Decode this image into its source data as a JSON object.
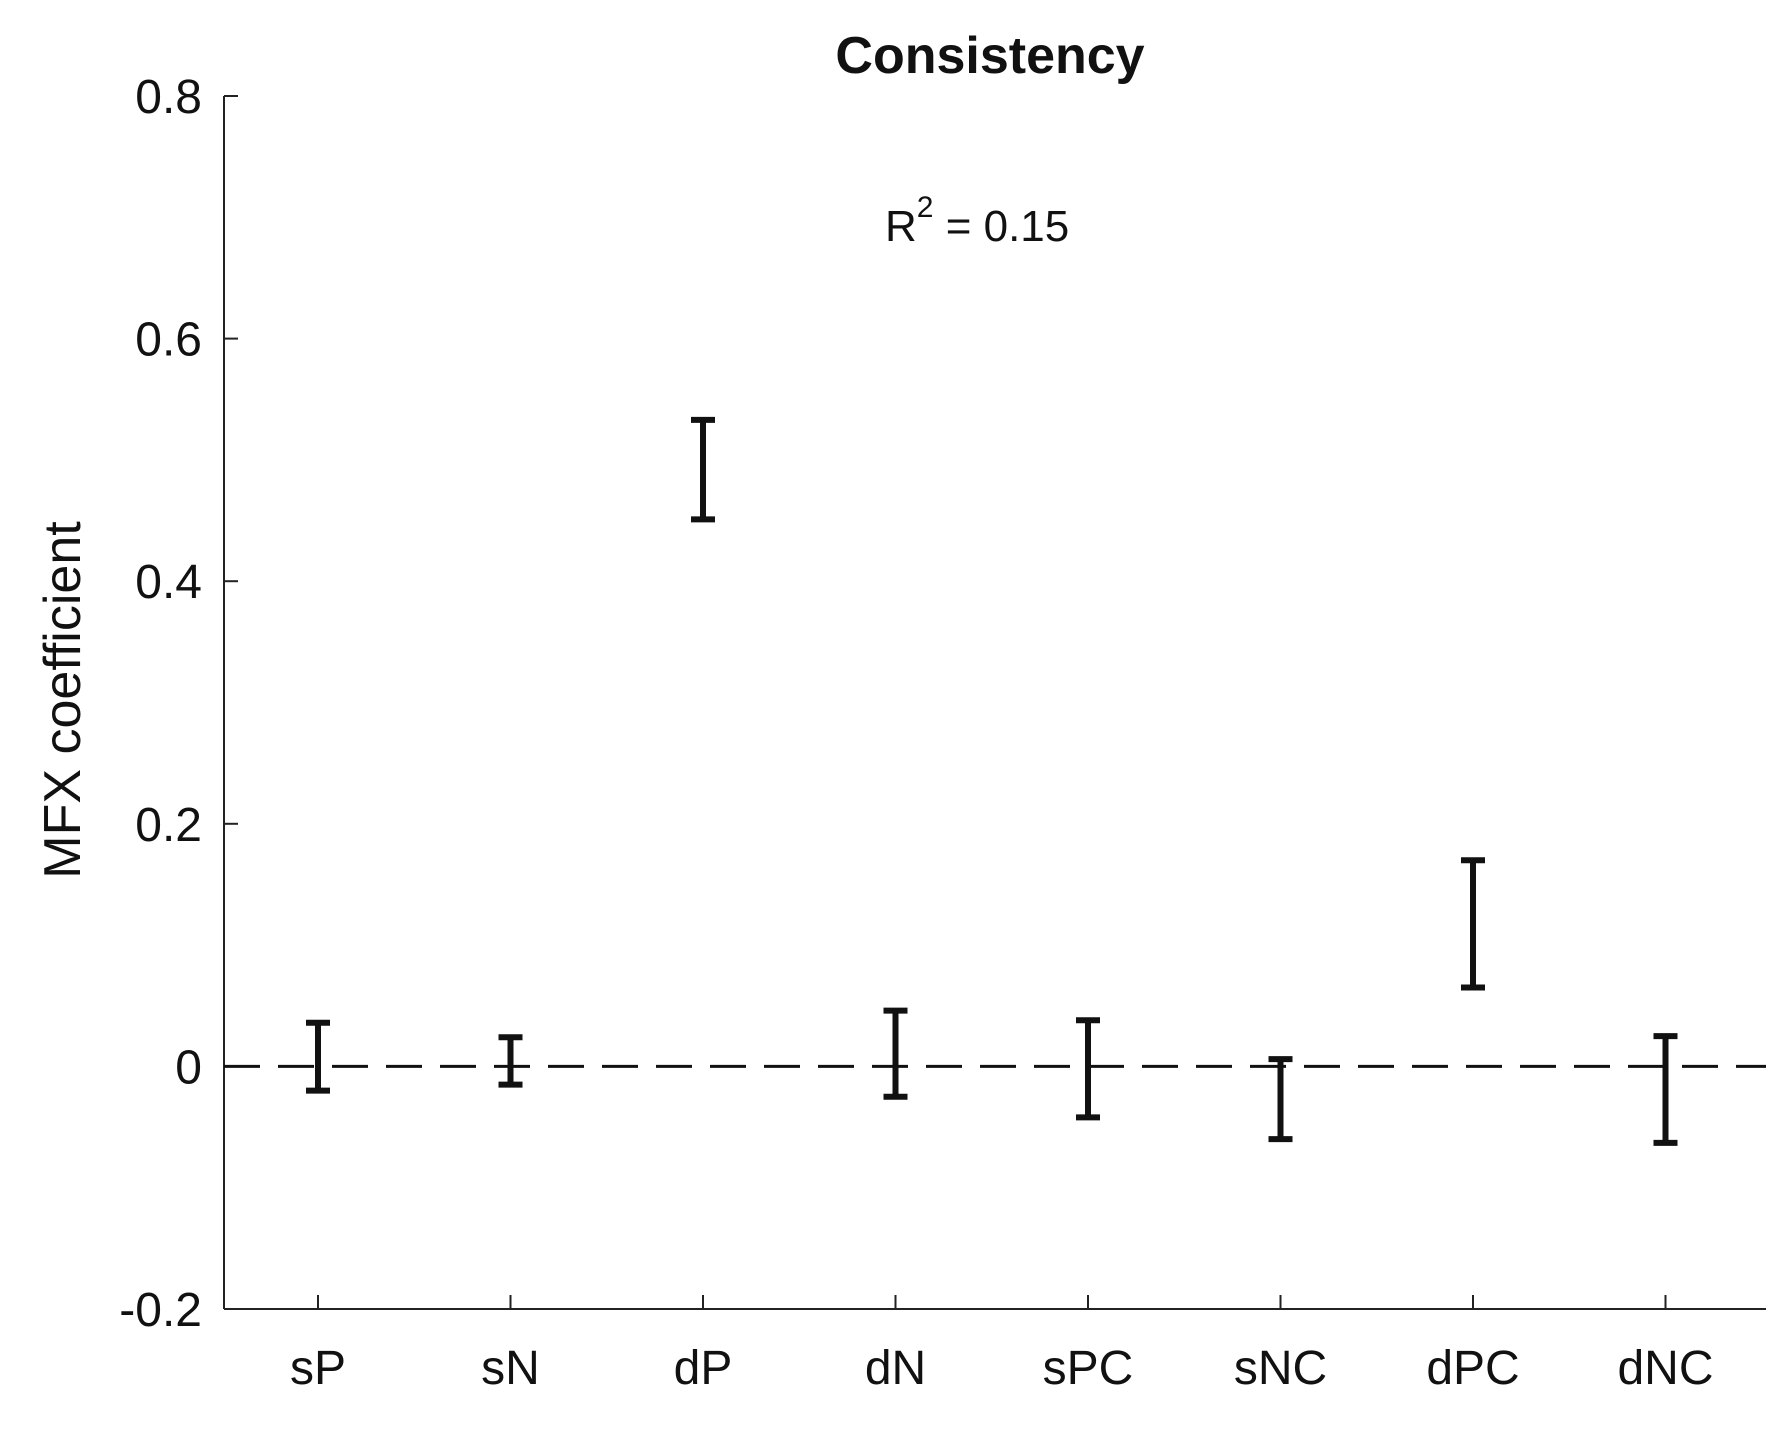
{
  "chart_data": {
    "type": "errorbar",
    "title": "Consistency",
    "xlabel": "",
    "ylabel": "MFX coefficient",
    "annotation": {
      "base": "R",
      "superscript": "2",
      "rest": " = 0.15"
    },
    "categories": [
      "sP",
      "sN",
      "dP",
      "dN",
      "sPC",
      "sNC",
      "dPC",
      "dNC"
    ],
    "series": [
      {
        "lower": [
          -0.02,
          -0.015,
          0.451,
          -0.025,
          -0.042,
          -0.06,
          0.065,
          -0.063
        ],
        "upper": [
          0.036,
          0.024,
          0.533,
          0.046,
          0.038,
          0.006,
          0.17,
          0.025
        ]
      }
    ],
    "ylim": [
      -0.2,
      0.8
    ],
    "yticks": [
      -0.2,
      0,
      0.2,
      0.4,
      0.6,
      0.8
    ],
    "ytick_labels": [
      "-0.2",
      "0",
      "0.2",
      "0.4",
      "0.6",
      "0.8"
    ],
    "reference_line": {
      "y": 0,
      "style": "dashed"
    },
    "grid": false,
    "colors": {
      "bars": "#111111",
      "axis": "#222222"
    }
  }
}
